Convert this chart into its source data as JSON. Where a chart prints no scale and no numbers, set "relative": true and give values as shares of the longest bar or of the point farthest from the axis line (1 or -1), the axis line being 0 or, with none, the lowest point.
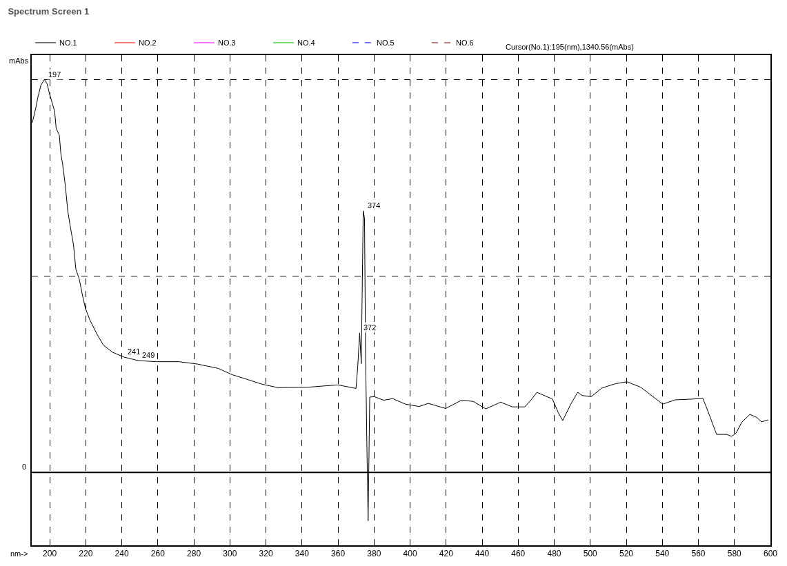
{
  "chart_data": {
    "type": "line",
    "title": "Spectrum Screen 1",
    "xlabel": "nm->",
    "ylabel": "mAbs",
    "relative": true,
    "xlim": [
      190,
      600
    ],
    "xticks": [
      200,
      220,
      240,
      260,
      280,
      300,
      320,
      340,
      360,
      380,
      400,
      420,
      440,
      460,
      480,
      500,
      520,
      540,
      560,
      580,
      600
    ],
    "grid": true,
    "legend": "top left",
    "ref_lines": [
      {
        "axis": "y",
        "value": 0,
        "label": "0",
        "color": "#000000",
        "line_style": "solid"
      }
    ],
    "annotations": [
      "Cursor(No.1):195(nm),1340.56(mAbs)",
      {
        "text": "197",
        "x": 197,
        "y": 1
      },
      {
        "text": "241",
        "x": 241,
        "y": 0.294
      },
      {
        "text": "249",
        "x": 249,
        "y": 0.285
      },
      {
        "text": "372",
        "x": 372,
        "y": 0.355
      },
      {
        "text": "374",
        "x": 374,
        "y": 0.666
      }
    ],
    "series": [
      {
        "name": "NO.1",
        "color": "#000000",
        "x": [
          190.3,
          192.2,
          193.4,
          195.1,
          197,
          198.5,
          199.8,
          202.7,
          203.6,
          205.3,
          206.2,
          207.1,
          208.7,
          210.0,
          211.3,
          213.2,
          214.5,
          216.4,
          218.3,
          219.8,
          222.1,
          225.9,
          229.8,
          234.9,
          241,
          249,
          259.1,
          271.8,
          282,
          293.5,
          301.2,
          307.5,
          317.7,
          326.6,
          343.2,
          359.8,
          370.0,
          371.0,
          372,
          372.9,
          374,
          374.7,
          375.3,
          376.0,
          376.7,
          377.6,
          380.2,
          385.3,
          390.4,
          397.4,
          405.0,
          410.1,
          419.7,
          428.6,
          435.0,
          442.0,
          450.3,
          456.7,
          463.7,
          467.5,
          470.4,
          479.0,
          482.2,
          484.7,
          489.2,
          493.0,
          495.5,
          500.6,
          506.4,
          514.0,
          520.4,
          528.0,
          535.7,
          540.2,
          547.2,
          557.4,
          562.5,
          566.3,
          570.1,
          575.8,
          578.4,
          580.9,
          584.1,
          588.6,
          592.4,
          595.0,
          598.8
        ],
        "values": [
          0.89,
          0.927,
          0.955,
          0.986,
          1,
          0.99,
          0.965,
          0.92,
          0.875,
          0.859,
          0.81,
          0.787,
          0.728,
          0.666,
          0.629,
          0.579,
          0.517,
          0.492,
          0.448,
          0.418,
          0.39,
          0.355,
          0.324,
          0.306,
          0.294,
          0.285,
          0.282,
          0.282,
          0.276,
          0.265,
          0.249,
          0.24,
          0.225,
          0.216,
          0.217,
          0.223,
          0.214,
          0.274,
          0.355,
          0.277,
          0.666,
          0.647,
          0.299,
          0.075,
          -0.123,
          0.192,
          0.193,
          0.184,
          0.188,
          0.174,
          0.168,
          0.176,
          0.163,
          0.184,
          0.181,
          0.162,
          0.179,
          0.167,
          0.167,
          0.187,
          0.204,
          0.187,
          0.153,
          0.132,
          0.174,
          0.204,
          0.196,
          0.193,
          0.215,
          0.226,
          0.231,
          0.217,
          0.19,
          0.174,
          0.185,
          0.187,
          0.189,
          0.144,
          0.097,
          0.097,
          0.092,
          0.1,
          0.128,
          0.148,
          0.14,
          0.129,
          0.134
        ]
      },
      {
        "name": "NO.2",
        "color": "#ff0000"
      },
      {
        "name": "NO.3",
        "color": "#ff00ff"
      },
      {
        "name": "NO.4",
        "color": "#00c000"
      },
      {
        "name": "NO.5",
        "color": "#0000ff",
        "line_style": "dashed"
      },
      {
        "name": "NO.6",
        "color": "#800000",
        "line_style": "dashed"
      }
    ]
  }
}
